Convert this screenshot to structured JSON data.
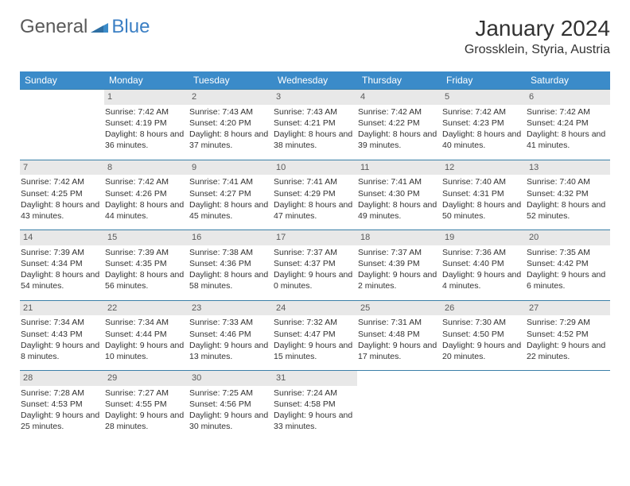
{
  "logo": {
    "general": "General",
    "blue": "Blue",
    "accent_color": "#3b8bc9"
  },
  "title": "January 2024",
  "location": "Grossklein, Styria, Austria",
  "header_bg": "#3b8bc9",
  "header_fg": "#ffffff",
  "daynum_bg": "#e8e8e8",
  "row_border": "#3b7fa8",
  "weekdays": [
    "Sunday",
    "Monday",
    "Tuesday",
    "Wednesday",
    "Thursday",
    "Friday",
    "Saturday"
  ],
  "weeks": [
    [
      {
        "n": "",
        "sr": "",
        "ss": "",
        "dl": ""
      },
      {
        "n": "1",
        "sr": "Sunrise: 7:42 AM",
        "ss": "Sunset: 4:19 PM",
        "dl": "Daylight: 8 hours and 36 minutes."
      },
      {
        "n": "2",
        "sr": "Sunrise: 7:43 AM",
        "ss": "Sunset: 4:20 PM",
        "dl": "Daylight: 8 hours and 37 minutes."
      },
      {
        "n": "3",
        "sr": "Sunrise: 7:43 AM",
        "ss": "Sunset: 4:21 PM",
        "dl": "Daylight: 8 hours and 38 minutes."
      },
      {
        "n": "4",
        "sr": "Sunrise: 7:42 AM",
        "ss": "Sunset: 4:22 PM",
        "dl": "Daylight: 8 hours and 39 minutes."
      },
      {
        "n": "5",
        "sr": "Sunrise: 7:42 AM",
        "ss": "Sunset: 4:23 PM",
        "dl": "Daylight: 8 hours and 40 minutes."
      },
      {
        "n": "6",
        "sr": "Sunrise: 7:42 AM",
        "ss": "Sunset: 4:24 PM",
        "dl": "Daylight: 8 hours and 41 minutes."
      }
    ],
    [
      {
        "n": "7",
        "sr": "Sunrise: 7:42 AM",
        "ss": "Sunset: 4:25 PM",
        "dl": "Daylight: 8 hours and 43 minutes."
      },
      {
        "n": "8",
        "sr": "Sunrise: 7:42 AM",
        "ss": "Sunset: 4:26 PM",
        "dl": "Daylight: 8 hours and 44 minutes."
      },
      {
        "n": "9",
        "sr": "Sunrise: 7:41 AM",
        "ss": "Sunset: 4:27 PM",
        "dl": "Daylight: 8 hours and 45 minutes."
      },
      {
        "n": "10",
        "sr": "Sunrise: 7:41 AM",
        "ss": "Sunset: 4:29 PM",
        "dl": "Daylight: 8 hours and 47 minutes."
      },
      {
        "n": "11",
        "sr": "Sunrise: 7:41 AM",
        "ss": "Sunset: 4:30 PM",
        "dl": "Daylight: 8 hours and 49 minutes."
      },
      {
        "n": "12",
        "sr": "Sunrise: 7:40 AM",
        "ss": "Sunset: 4:31 PM",
        "dl": "Daylight: 8 hours and 50 minutes."
      },
      {
        "n": "13",
        "sr": "Sunrise: 7:40 AM",
        "ss": "Sunset: 4:32 PM",
        "dl": "Daylight: 8 hours and 52 minutes."
      }
    ],
    [
      {
        "n": "14",
        "sr": "Sunrise: 7:39 AM",
        "ss": "Sunset: 4:34 PM",
        "dl": "Daylight: 8 hours and 54 minutes."
      },
      {
        "n": "15",
        "sr": "Sunrise: 7:39 AM",
        "ss": "Sunset: 4:35 PM",
        "dl": "Daylight: 8 hours and 56 minutes."
      },
      {
        "n": "16",
        "sr": "Sunrise: 7:38 AM",
        "ss": "Sunset: 4:36 PM",
        "dl": "Daylight: 8 hours and 58 minutes."
      },
      {
        "n": "17",
        "sr": "Sunrise: 7:37 AM",
        "ss": "Sunset: 4:37 PM",
        "dl": "Daylight: 9 hours and 0 minutes."
      },
      {
        "n": "18",
        "sr": "Sunrise: 7:37 AM",
        "ss": "Sunset: 4:39 PM",
        "dl": "Daylight: 9 hours and 2 minutes."
      },
      {
        "n": "19",
        "sr": "Sunrise: 7:36 AM",
        "ss": "Sunset: 4:40 PM",
        "dl": "Daylight: 9 hours and 4 minutes."
      },
      {
        "n": "20",
        "sr": "Sunrise: 7:35 AM",
        "ss": "Sunset: 4:42 PM",
        "dl": "Daylight: 9 hours and 6 minutes."
      }
    ],
    [
      {
        "n": "21",
        "sr": "Sunrise: 7:34 AM",
        "ss": "Sunset: 4:43 PM",
        "dl": "Daylight: 9 hours and 8 minutes."
      },
      {
        "n": "22",
        "sr": "Sunrise: 7:34 AM",
        "ss": "Sunset: 4:44 PM",
        "dl": "Daylight: 9 hours and 10 minutes."
      },
      {
        "n": "23",
        "sr": "Sunrise: 7:33 AM",
        "ss": "Sunset: 4:46 PM",
        "dl": "Daylight: 9 hours and 13 minutes."
      },
      {
        "n": "24",
        "sr": "Sunrise: 7:32 AM",
        "ss": "Sunset: 4:47 PM",
        "dl": "Daylight: 9 hours and 15 minutes."
      },
      {
        "n": "25",
        "sr": "Sunrise: 7:31 AM",
        "ss": "Sunset: 4:48 PM",
        "dl": "Daylight: 9 hours and 17 minutes."
      },
      {
        "n": "26",
        "sr": "Sunrise: 7:30 AM",
        "ss": "Sunset: 4:50 PM",
        "dl": "Daylight: 9 hours and 20 minutes."
      },
      {
        "n": "27",
        "sr": "Sunrise: 7:29 AM",
        "ss": "Sunset: 4:52 PM",
        "dl": "Daylight: 9 hours and 22 minutes."
      }
    ],
    [
      {
        "n": "28",
        "sr": "Sunrise: 7:28 AM",
        "ss": "Sunset: 4:53 PM",
        "dl": "Daylight: 9 hours and 25 minutes."
      },
      {
        "n": "29",
        "sr": "Sunrise: 7:27 AM",
        "ss": "Sunset: 4:55 PM",
        "dl": "Daylight: 9 hours and 28 minutes."
      },
      {
        "n": "30",
        "sr": "Sunrise: 7:25 AM",
        "ss": "Sunset: 4:56 PM",
        "dl": "Daylight: 9 hours and 30 minutes."
      },
      {
        "n": "31",
        "sr": "Sunrise: 7:24 AM",
        "ss": "Sunset: 4:58 PM",
        "dl": "Daylight: 9 hours and 33 minutes."
      },
      {
        "n": "",
        "sr": "",
        "ss": "",
        "dl": ""
      },
      {
        "n": "",
        "sr": "",
        "ss": "",
        "dl": ""
      },
      {
        "n": "",
        "sr": "",
        "ss": "",
        "dl": ""
      }
    ]
  ]
}
